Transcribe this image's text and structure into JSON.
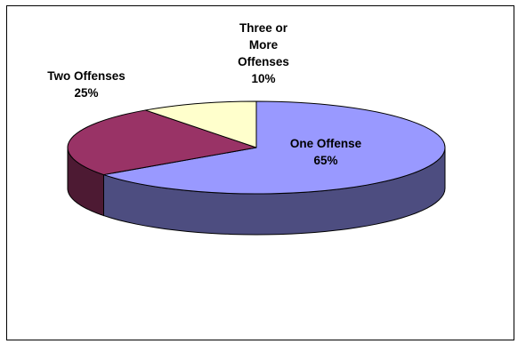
{
  "chart_data": {
    "type": "pie",
    "style": "3d",
    "title": "",
    "slices": [
      {
        "name": "One Offense",
        "value": 65,
        "label": "65%",
        "color": "#9999FF"
      },
      {
        "name": "Two Offenses",
        "value": 25,
        "label": "25%",
        "color": "#993366"
      },
      {
        "name": "Three or More Offenses",
        "value": 10,
        "label": "10%",
        "color": "#FFFFCC"
      }
    ],
    "label_lines": [
      [
        "One Offense",
        "65%"
      ],
      [
        "Two Offenses",
        "25%"
      ],
      [
        "Three or",
        "More",
        "Offenses",
        "10%"
      ]
    ],
    "legend": "none"
  }
}
